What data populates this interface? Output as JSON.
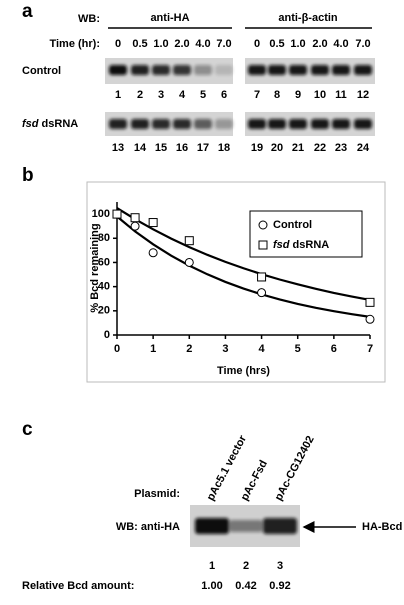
{
  "panel_a": {
    "label": "a",
    "wb_label": "WB:",
    "antibodies": [
      "anti-HA",
      "anti-β-actin"
    ],
    "time_label": "Time (hr):",
    "times": [
      "0",
      "0.5",
      "1.0",
      "2.0",
      "4.0",
      "7.0"
    ],
    "rows": [
      {
        "name": "Control",
        "lanes": [
          1,
          2,
          3,
          4,
          5,
          6,
          7,
          8,
          9,
          10,
          11,
          12
        ]
      },
      {
        "name": "fsd dsRNA",
        "lanes": [
          13,
          14,
          15,
          16,
          17,
          18,
          19,
          20,
          21,
          22,
          23,
          24
        ]
      }
    ]
  },
  "chart_data": {
    "type": "scatter",
    "label": "b",
    "ylabel": "% Bcd remaining",
    "xlabel": "Time (hrs)",
    "x": [
      0,
      0.5,
      1,
      2,
      4,
      7
    ],
    "series": [
      {
        "name": "Control",
        "color": "#000000",
        "marker": "circle",
        "values": [
          100,
          90,
          68,
          60,
          35,
          13
        ]
      },
      {
        "name": "fsd dsRNA",
        "color": "#000000",
        "marker": "square",
        "values": [
          100,
          97,
          93,
          78,
          48,
          27
        ]
      }
    ],
    "fits": [
      {
        "color": "#000000",
        "x": [
          0,
          0.5,
          1,
          1.5,
          2,
          2.5,
          3,
          3.5,
          4,
          4.5,
          5,
          5.5,
          6,
          6.5,
          7
        ],
        "values": [
          98,
          85.7,
          75,
          65.6,
          57.4,
          50.2,
          43.9,
          38.4,
          33.6,
          29.4,
          25.7,
          22.5,
          19.7,
          17.2,
          15
        ]
      },
      {
        "color": "#000000",
        "x": [
          0,
          0.5,
          1,
          1.5,
          2,
          2.5,
          3,
          3.5,
          4,
          4.5,
          5,
          5.5,
          6,
          6.5,
          7
        ],
        "values": [
          105,
          95.8,
          87.4,
          79.7,
          72.7,
          66.3,
          60.5,
          55.2,
          50.3,
          45.9,
          41.9,
          38.2,
          34.8,
          31.8,
          29
        ]
      }
    ],
    "xlim": [
      0,
      7
    ],
    "ylim": [
      0,
      110
    ],
    "xticks": [
      0,
      1,
      2,
      3,
      4,
      5,
      6,
      7
    ],
    "yticks": [
      0,
      20,
      40,
      60,
      80,
      100
    ],
    "legend": "upper right",
    "grid": false
  },
  "panel_c": {
    "label": "c",
    "plasmid_label": "Plasmid:",
    "plasmids": [
      "pAc5.1 vector",
      "pAc-Fsd",
      "pAc-CG12402"
    ],
    "wb_label": "WB: anti-HA",
    "band_label": "HA-Bcd",
    "lanes": [
      1,
      2,
      3
    ],
    "amount_label": "Relative Bcd amount:",
    "amounts": [
      "1.00",
      "0.42",
      "0.92"
    ]
  }
}
